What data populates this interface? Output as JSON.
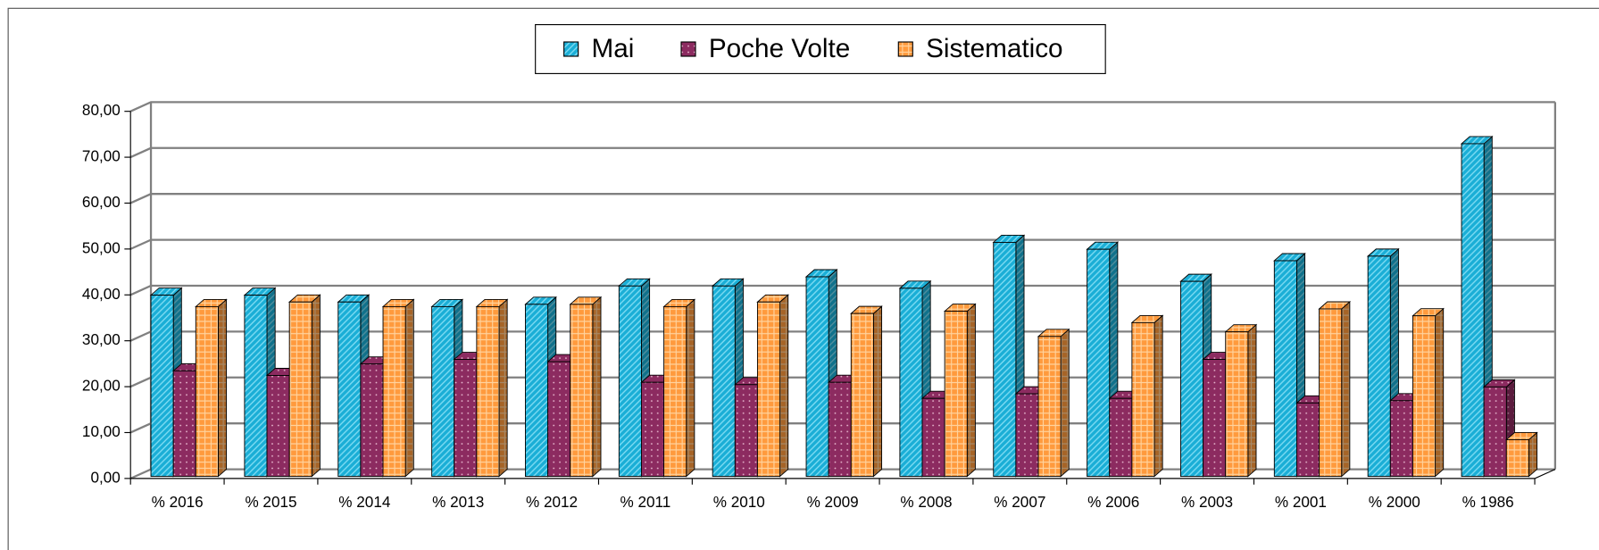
{
  "chart_data": {
    "type": "bar3d",
    "categories": [
      "% 2016",
      "% 2015",
      "% 2014",
      "% 2013",
      "% 2012",
      "% 2011",
      "% 2010",
      "% 2009",
      "% 2008",
      "% 2007",
      "% 2006",
      "% 2003",
      "% 2001",
      "% 2000",
      "% 1986"
    ],
    "series": [
      {
        "name": "Mai",
        "color": "#1aaed6",
        "values": [
          39.5,
          39.5,
          38,
          37,
          37.5,
          41.5,
          41.5,
          43.5,
          41,
          51,
          49.5,
          42.5,
          47,
          48,
          72.5
        ]
      },
      {
        "name": "Poche Volte",
        "color": "#8c2b60",
        "values": [
          23,
          22,
          24.5,
          25.5,
          25,
          20.5,
          20,
          20.5,
          17,
          18,
          17,
          25.5,
          16,
          16.5,
          19.5
        ]
      },
      {
        "name": "Sistematico",
        "color": "#ff9a3d",
        "values": [
          37,
          38,
          37,
          37,
          37.5,
          37,
          38,
          35.5,
          36,
          30.5,
          33.5,
          31.5,
          36.5,
          35,
          8
        ]
      }
    ],
    "ylim": [
      0,
      80
    ],
    "yticks": [
      {
        "value": 0,
        "label": "0,00"
      },
      {
        "value": 10,
        "label": "10,00"
      },
      {
        "value": 20,
        "label": "20,00"
      },
      {
        "value": 30,
        "label": "30,00"
      },
      {
        "value": 40,
        "label": "40,00"
      },
      {
        "value": 50,
        "label": "50,00"
      },
      {
        "value": 60,
        "label": "60,00"
      },
      {
        "value": 70,
        "label": "70,00"
      },
      {
        "value": 80,
        "label": "80,00"
      }
    ],
    "grid": true,
    "legend": "top"
  }
}
